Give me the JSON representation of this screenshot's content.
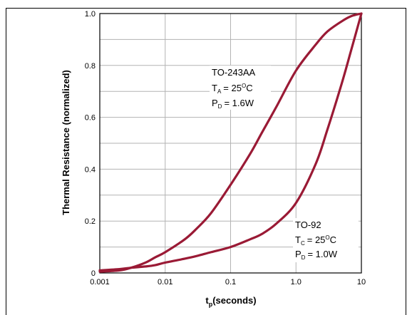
{
  "colors": {
    "curve": "#9a1a35",
    "grid": "#b3b3b3",
    "axis": "#000000",
    "background": "#ffffff"
  },
  "chart_data": {
    "type": "line",
    "xlabel_main": "t",
    "xlabel_sub": "p",
    "xlabel_rest": "(seconds)",
    "ylabel": "Thermal Resistance (normalized)",
    "x_scale": "log",
    "xlim": [
      0.001,
      10
    ],
    "ylim": [
      0,
      1.0
    ],
    "grid": true,
    "x_ticks": [
      {
        "value": 0.001,
        "label": "0.001"
      },
      {
        "value": 0.01,
        "label": "0.01"
      },
      {
        "value": 0.1,
        "label": "0.1"
      },
      {
        "value": 1,
        "label": "1.0"
      },
      {
        "value": 10,
        "label": "10"
      }
    ],
    "y_ticks": [
      {
        "value": 0,
        "label": "0"
      },
      {
        "value": 0.2,
        "label": "0.2"
      },
      {
        "value": 0.4,
        "label": "0.4"
      },
      {
        "value": 0.6,
        "label": "0.6"
      },
      {
        "value": 0.8,
        "label": "0.8"
      },
      {
        "value": 1.0,
        "label": "1.0"
      }
    ],
    "series": [
      {
        "name": "TO-243AA",
        "x": [
          0.001,
          0.002,
          0.003,
          0.005,
          0.007,
          0.01,
          0.02,
          0.03,
          0.05,
          0.1,
          0.2,
          0.3,
          0.5,
          1,
          2,
          3,
          5,
          7,
          10
        ],
        "y": [
          0.005,
          0.01,
          0.02,
          0.04,
          0.06,
          0.08,
          0.13,
          0.17,
          0.23,
          0.34,
          0.46,
          0.54,
          0.64,
          0.78,
          0.88,
          0.93,
          0.97,
          0.99,
          1.0
        ]
      },
      {
        "name": "TO-92",
        "x": [
          0.001,
          0.002,
          0.003,
          0.005,
          0.007,
          0.01,
          0.02,
          0.03,
          0.05,
          0.1,
          0.2,
          0.3,
          0.5,
          1,
          2,
          3,
          5,
          7,
          10
        ],
        "y": [
          0.01,
          0.015,
          0.02,
          0.025,
          0.03,
          0.04,
          0.055,
          0.065,
          0.08,
          0.1,
          0.13,
          0.15,
          0.19,
          0.27,
          0.42,
          0.55,
          0.73,
          0.86,
          1.0
        ]
      }
    ],
    "annotations": [
      {
        "series": "TO-243AA",
        "line1": "TO-243AA",
        "line2_main": "T",
        "line2_sub": "A",
        "line2_rest": "= 25",
        "line2_sup": "O",
        "line2_unit": "C",
        "line3_main": "P",
        "line3_sub": "D",
        "line3_rest": "= 1.6W"
      },
      {
        "series": "TO-92",
        "line1": "TO-92",
        "line2_main": "T",
        "line2_sub": "C",
        "line2_rest": "= 25",
        "line2_sup": "O",
        "line2_unit": "C",
        "line3_main": "P",
        "line3_sub": "D",
        "line3_rest": "= 1.0W"
      }
    ]
  }
}
